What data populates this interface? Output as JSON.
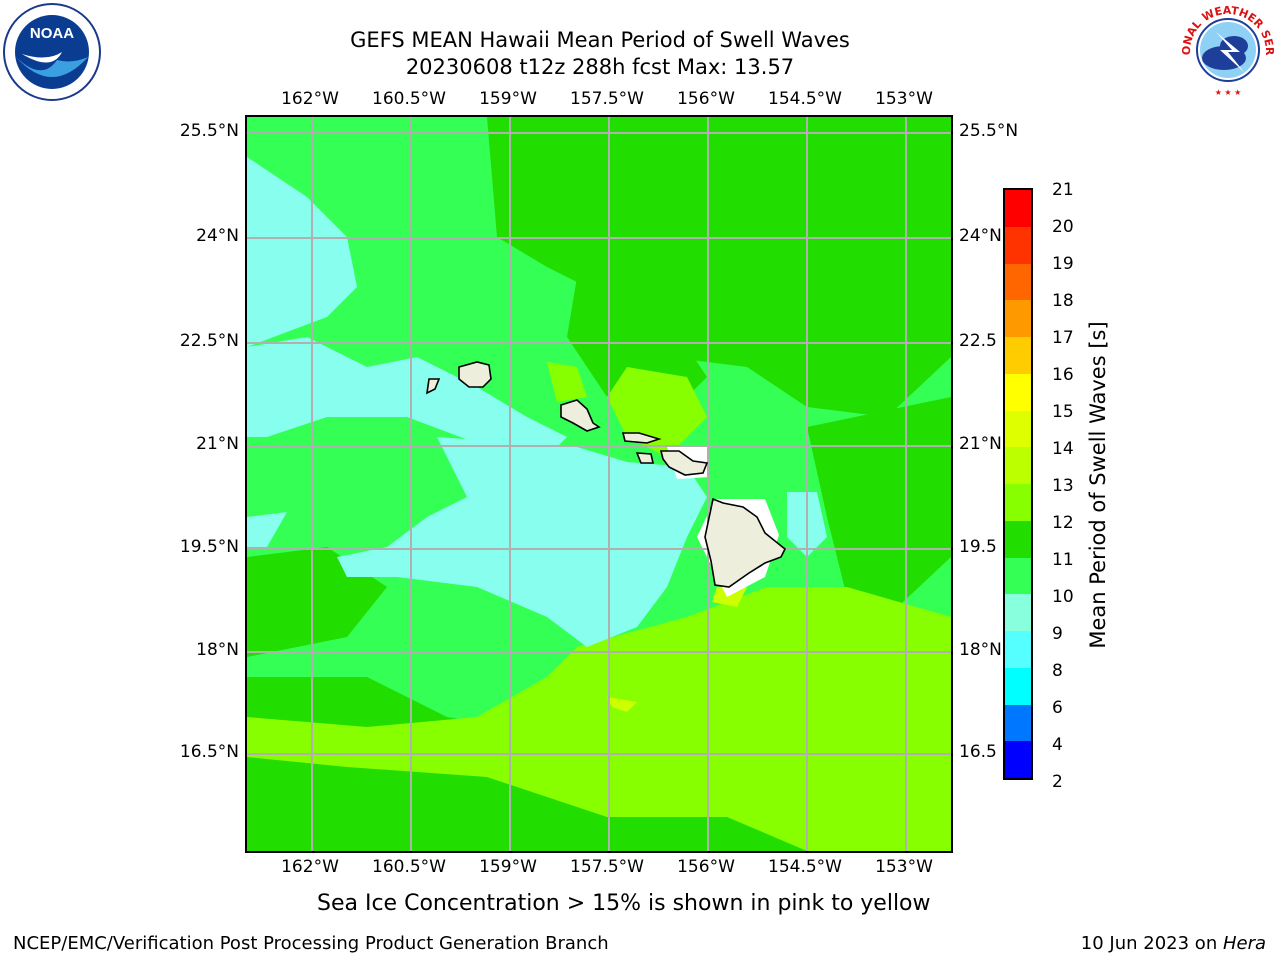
{
  "header": {
    "title_line1": "GEFS MEAN Hawaii Mean Period of Swell Waves",
    "title_line2": "20230608 t12z 288h fcst   Max: 13.57"
  },
  "logos": {
    "left": "NOAA",
    "right_text": "NATIONAL WEATHER SERVICE"
  },
  "map": {
    "lon_labels": [
      "162°W",
      "160.5°W",
      "159°W",
      "157.5°W",
      "156°W",
      "154.5°W",
      "153°W"
    ],
    "lat_labels": [
      "25.5°N",
      "24°N",
      "22.5°N",
      "21°N",
      "19.5°N",
      "18°N",
      "16.5°N"
    ],
    "lat_labels_right": [
      "25.5°N",
      "24°N",
      "22.5",
      "21°N",
      "19.5",
      "18°N",
      "16.5"
    ],
    "colors": {
      "green_dark": "#22dd00",
      "green": "#33ff55",
      "lime": "#88ff00",
      "yellow_green": "#ccff00",
      "cyan_light": "#88ffee",
      "land": "#eeeedd",
      "grid": "#b0b0b0"
    }
  },
  "colorbar": {
    "label": "Mean Period of Swell Waves [s]",
    "ticks": [
      "21",
      "20",
      "19",
      "18",
      "17",
      "16",
      "15",
      "14",
      "13",
      "12",
      "11",
      "10",
      "9",
      "8",
      "6",
      "4",
      "2"
    ],
    "colors": [
      "#ff0000",
      "#ff3300",
      "#ff6600",
      "#ff9900",
      "#ffcc00",
      "#ffff00",
      "#ddff00",
      "#bbff00",
      "#88ff00",
      "#22dd00",
      "#33ff55",
      "#88ffdd",
      "#55ffff",
      "#00ffff",
      "#0077ff",
      "#0000ff"
    ]
  },
  "footer": {
    "sea_ice_note": "Sea Ice Concentration > 15% is shown in pink to yellow",
    "org": "NCEP/EMC/Verification Post Processing Product Generation Branch",
    "date_prefix": "10 Jun 2023 on ",
    "host": "Hera"
  }
}
